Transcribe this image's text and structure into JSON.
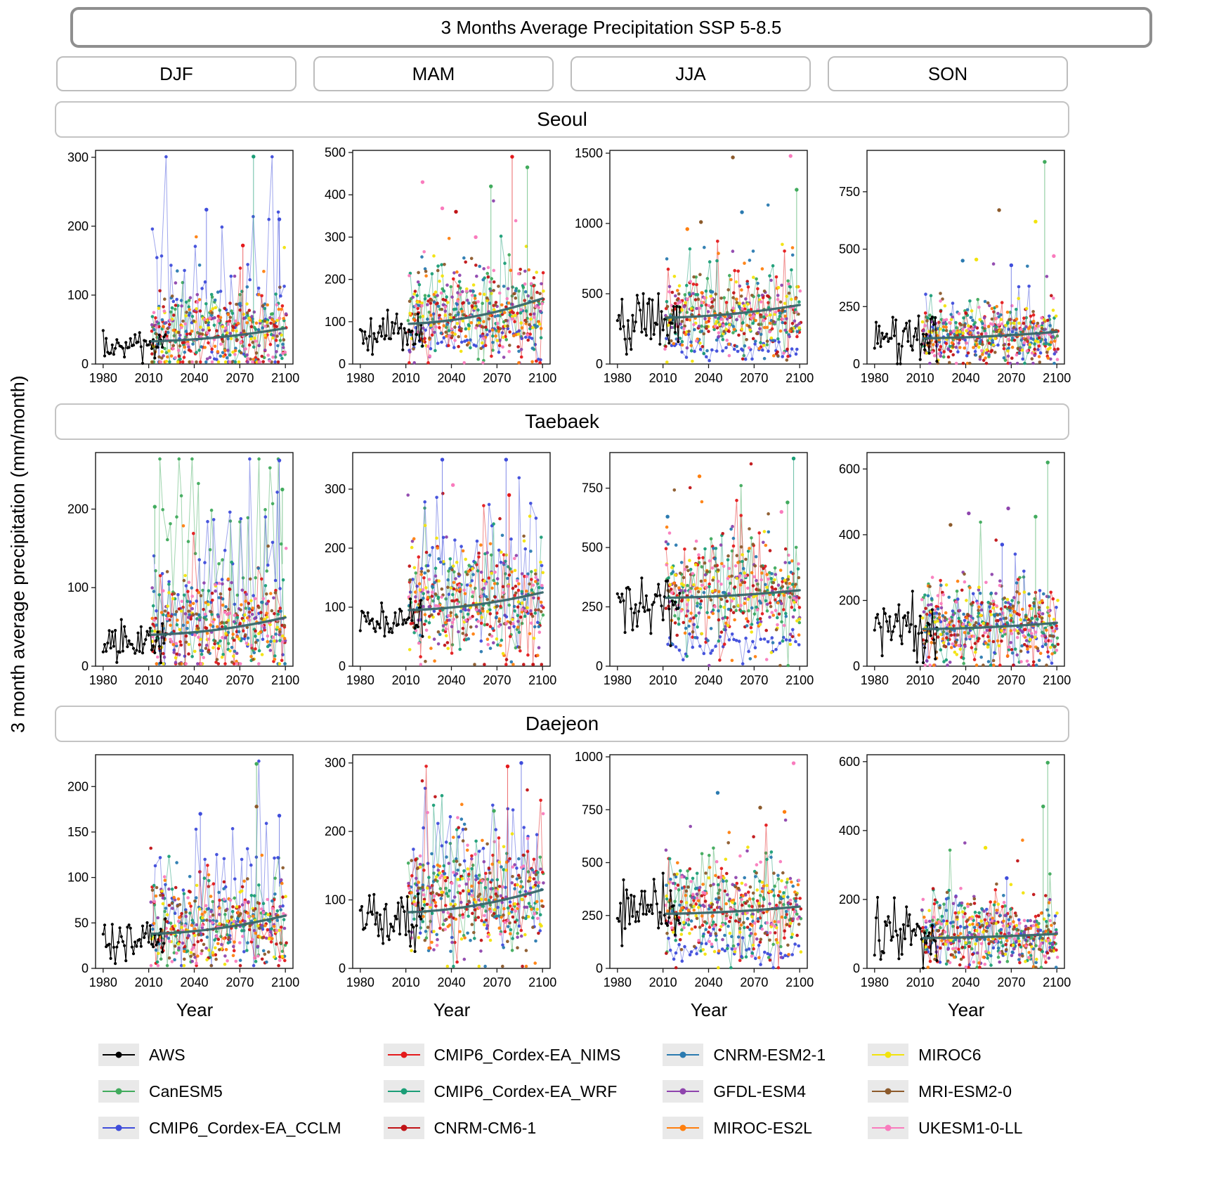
{
  "figure": {
    "title": "3 Months Average Precipitation SSP 5-8.5",
    "ylabel": "3 month average precipitation (mm/month)",
    "xlabel": "Year",
    "columns": [
      "DJF",
      "MAM",
      "JJA",
      "SON"
    ],
    "rows": [
      "Seoul",
      "Taebaek",
      "Daejeon"
    ]
  },
  "legend": {
    "columns": [
      [
        "AWS",
        "CanESM5",
        "CMIP6_Cordex-EA_CCLM"
      ],
      [
        "CMIP6_Cordex-EA_NIMS",
        "CMIP6_Cordex-EA_WRF",
        "CNRM-CM6-1"
      ],
      [
        "CNRM-ESM2-1",
        "GFDL-ESM4",
        "MIROC-ES2L"
      ],
      [
        "MIROC6",
        "MRI-ESM2-0",
        "UKESM1-0-LL"
      ]
    ]
  },
  "chart_data": {
    "type": "scatter",
    "title": "3 Months Average Precipitation SSP 5-8.5",
    "xlabel": "Year",
    "ylabel": "3 month average precipitation (mm/month)",
    "x": {
      "range": [
        1975,
        2105
      ],
      "ticks": [
        1980,
        2010,
        2040,
        2070,
        2100
      ]
    },
    "observed_period": [
      1980,
      2021
    ],
    "model_period": [
      2012,
      2100
    ],
    "trend_color": "#37676a",
    "series": [
      {
        "name": "AWS",
        "color": "#000000",
        "role": "observed",
        "line": true
      },
      {
        "name": "CanESM5",
        "color": "#41ab5d",
        "role": "model",
        "line": true
      },
      {
        "name": "CMIP6_Cordex-EA_CCLM",
        "color": "#3f4ddb",
        "role": "model",
        "line": true
      },
      {
        "name": "CMIP6_Cordex-EA_NIMS",
        "color": "#e41a1c",
        "role": "model",
        "line": true
      },
      {
        "name": "CMIP6_Cordex-EA_WRF",
        "color": "#1b9e77",
        "role": "model",
        "line": true
      },
      {
        "name": "CNRM-CM6-1",
        "color": "#c01316",
        "role": "model",
        "line": false
      },
      {
        "name": "CNRM-ESM2-1",
        "color": "#2a7ab0",
        "role": "model",
        "line": false
      },
      {
        "name": "GFDL-ESM4",
        "color": "#8e44ad",
        "role": "model",
        "line": false
      },
      {
        "name": "MIROC-ES2L",
        "color": "#ff7f0e",
        "role": "model",
        "line": false
      },
      {
        "name": "MIROC6",
        "color": "#f2e30c",
        "role": "model",
        "line": false
      },
      {
        "name": "MRI-ESM2-0",
        "color": "#8c5a2b",
        "role": "model",
        "line": false
      },
      {
        "name": "UKESM1-0-LL",
        "color": "#f97bbd",
        "role": "model",
        "line": false
      }
    ],
    "panels": [
      {
        "city": "Seoul",
        "season": "DJF",
        "ymax": 310,
        "yticks": [
          0,
          100,
          200,
          300
        ],
        "aws": [
          25,
          13
        ],
        "model": [
          45,
          28
        ],
        "trend": [
          33,
          52
        ],
        "emphasis": {
          "CMIP6_Cordex-EA_CCLM": 2.1,
          "CMIP6_Cordex-EA_WRF": 1.2
        },
        "outliers": [
          [
            2079,
            301,
            "CMIP6_Cordex-EA_WRF"
          ],
          [
            2048,
            224,
            "CMIP6_Cordex-EA_CCLM"
          ],
          [
            2096,
            210,
            "CMIP6_Cordex-EA_CCLM"
          ],
          [
            2072,
            172,
            "CMIP6_Cordex-EA_NIMS"
          ]
        ]
      },
      {
        "city": "Seoul",
        "season": "MAM",
        "ymax": 505,
        "yticks": [
          0,
          100,
          200,
          300,
          400,
          500
        ],
        "aws": [
          70,
          22
        ],
        "model": [
          120,
          55
        ],
        "trend": [
          95,
          155
        ],
        "emphasis": {
          "CMIP6_Cordex-EA_CCLM": 0.55
        },
        "outliers": [
          [
            2080,
            490,
            "CMIP6_Cordex-EA_NIMS"
          ],
          [
            2021,
            430,
            "UKESM1-0-LL"
          ],
          [
            2034,
            368,
            "UKESM1-0-LL"
          ],
          [
            2056,
            300,
            "UKESM1-0-LL"
          ],
          [
            2066,
            420,
            "CanESM5"
          ],
          [
            2090,
            465,
            "CanESM5"
          ],
          [
            2043,
            360,
            "CNRM-CM6-1"
          ]
        ]
      },
      {
        "city": "Seoul",
        "season": "JJA",
        "ymax": 1520,
        "yticks": [
          0,
          500,
          1000,
          1500
        ],
        "aws": [
          300,
          110
        ],
        "model": [
          340,
          140
        ],
        "trend": [
          330,
          420
        ],
        "emphasis": {
          "CMIP6_Cordex-EA_CCLM": 0.3
        },
        "outliers": [
          [
            2056,
            1470,
            "MRI-ESM2-0"
          ],
          [
            2094,
            1480,
            "UKESM1-0-LL"
          ],
          [
            2098,
            1240,
            "CanESM5"
          ],
          [
            2062,
            1080,
            "CNRM-ESM2-1"
          ],
          [
            2035,
            1010,
            "MRI-ESM2-0"
          ],
          [
            2026,
            960,
            "MIROC-ES2L"
          ]
        ]
      },
      {
        "city": "Seoul",
        "season": "SON",
        "ymax": 930,
        "yticks": [
          0,
          250,
          500,
          750
        ],
        "aws": [
          110,
          55
        ],
        "model": [
          130,
          65
        ],
        "trend": [
          112,
          140
        ],
        "emphasis": {},
        "outliers": [
          [
            2092,
            880,
            "CanESM5"
          ],
          [
            2062,
            670,
            "MRI-ESM2-0"
          ],
          [
            2086,
            620,
            "MIROC6"
          ],
          [
            2047,
            455,
            "MIROC6"
          ],
          [
            2098,
            470,
            "UKESM1-0-LL"
          ],
          [
            2038,
            450,
            "CNRM-ESM2-1"
          ],
          [
            2070,
            430,
            "CMIP6_Cordex-EA_CCLM"
          ]
        ]
      },
      {
        "city": "Taebaek",
        "season": "DJF",
        "ymax": 272,
        "yticks": [
          0,
          100,
          200
        ],
        "aws": [
          30,
          13
        ],
        "model": [
          50,
          30
        ],
        "trend": [
          40,
          62
        ],
        "emphasis": {
          "CanESM5": 2.6,
          "CMIP6_Cordex-EA_CCLM": 2.0
        },
        "outliers": [
          [
            2096,
            262,
            "CMIP6_Cordex-EA_CCLM"
          ],
          [
            2014,
            203,
            "CanESM5"
          ],
          [
            2098,
            225,
            "CanESM5"
          ]
        ]
      },
      {
        "city": "Taebaek",
        "season": "MAM",
        "ymax": 362,
        "yticks": [
          0,
          100,
          200,
          300
        ],
        "aws": [
          80,
          22
        ],
        "model": [
          110,
          48
        ],
        "trend": [
          95,
          125
        ],
        "emphasis": {
          "CMIP6_Cordex-EA_CCLM": 1.4
        },
        "outliers": [
          [
            2034,
            350,
            "CMIP6_Cordex-EA_CCLM"
          ],
          [
            2076,
            350,
            "CMIP6_Cordex-EA_CCLM"
          ],
          [
            2041,
            307,
            "UKESM1-0-LL"
          ],
          [
            2078,
            290,
            "CMIP6_Cordex-EA_NIMS"
          ]
        ]
      },
      {
        "city": "Taebaek",
        "season": "JJA",
        "ymax": 900,
        "yticks": [
          0,
          250,
          500,
          750
        ],
        "aws": [
          260,
          70
        ],
        "model": [
          300,
          110
        ],
        "trend": [
          288,
          320
        ],
        "emphasis": {
          "CMIP6_Cordex-EA_CCLM": 0.3
        },
        "outliers": [
          [
            2096,
            875,
            "CMIP6_Cordex-EA_WRF"
          ],
          [
            2034,
            800,
            "MIROC-ES2L"
          ],
          [
            2092,
            690,
            "CanESM5"
          ],
          [
            2088,
            650,
            "UKESM1-0-LL"
          ],
          [
            2013,
            630,
            "CNRM-ESM2-1"
          ]
        ]
      },
      {
        "city": "Taebaek",
        "season": "SON",
        "ymax": 650,
        "yticks": [
          0,
          200,
          400,
          600
        ],
        "aws": [
          110,
          48
        ],
        "model": [
          120,
          65
        ],
        "trend": [
          113,
          132
        ],
        "emphasis": {},
        "outliers": [
          [
            2094,
            620,
            "CanESM5"
          ],
          [
            2042,
            465,
            "GFDL-ESM4"
          ],
          [
            2068,
            480,
            "GFDL-ESM4"
          ],
          [
            2086,
            455,
            "CanESM5"
          ],
          [
            2030,
            430,
            "MRI-ESM2-0"
          ],
          [
            2064,
            370,
            "CMIP6_Cordex-EA_CCLM"
          ]
        ]
      },
      {
        "city": "Daejeon",
        "season": "DJF",
        "ymax": 235,
        "yticks": [
          0,
          50,
          100,
          150,
          200
        ],
        "aws": [
          30,
          14
        ],
        "model": [
          45,
          24
        ],
        "trend": [
          38,
          58
        ],
        "emphasis": {
          "CMIP6_Cordex-EA_CCLM": 2.0
        },
        "outliers": [
          [
            2081,
            225,
            "CanESM5"
          ],
          [
            2081,
            178,
            "MRI-ESM2-0"
          ],
          [
            2044,
            170,
            "CMIP6_Cordex-EA_CCLM"
          ],
          [
            2096,
            168,
            "CMIP6_Cordex-EA_CCLM"
          ]
        ]
      },
      {
        "city": "Daejeon",
        "season": "MAM",
        "ymax": 312,
        "yticks": [
          0,
          100,
          200,
          300
        ],
        "aws": [
          75,
          20
        ],
        "model": [
          100,
          42
        ],
        "trend": [
          82,
          115
        ],
        "emphasis": {
          "CMIP6_Cordex-EA_CCLM": 1.5
        },
        "outliers": [
          [
            2086,
            300,
            "CMIP6_Cordex-EA_CCLM"
          ],
          [
            2077,
            295,
            "CMIP6_Cordex-EA_NIMS"
          ],
          [
            2068,
            230,
            "CanESM5"
          ]
        ]
      },
      {
        "city": "Daejeon",
        "season": "JJA",
        "ymax": 1010,
        "yticks": [
          0,
          250,
          500,
          750,
          1000
        ],
        "aws": [
          270,
          80
        ],
        "model": [
          280,
          110
        ],
        "trend": [
          258,
          292
        ],
        "emphasis": {
          "CMIP6_Cordex-EA_CCLM": 0.32
        },
        "outliers": [
          [
            2096,
            970,
            "UKESM1-0-LL"
          ],
          [
            2046,
            830,
            "CNRM-ESM2-1"
          ],
          [
            2074,
            760,
            "MRI-ESM2-0"
          ],
          [
            2090,
            740,
            "MIROC-ES2L"
          ]
        ]
      },
      {
        "city": "Daejeon",
        "season": "SON",
        "ymax": 620,
        "yticks": [
          0,
          200,
          400,
          600
        ],
        "aws": [
          90,
          40
        ],
        "model": [
          95,
          50
        ],
        "trend": [
          88,
          100
        ],
        "emphasis": {},
        "outliers": [
          [
            2094,
            597,
            "CanESM5"
          ],
          [
            2091,
            470,
            "CanESM5"
          ],
          [
            2053,
            350,
            "MIROC6"
          ],
          [
            2067,
            262,
            "CMIP6_Cordex-EA_CCLM"
          ]
        ]
      }
    ]
  }
}
